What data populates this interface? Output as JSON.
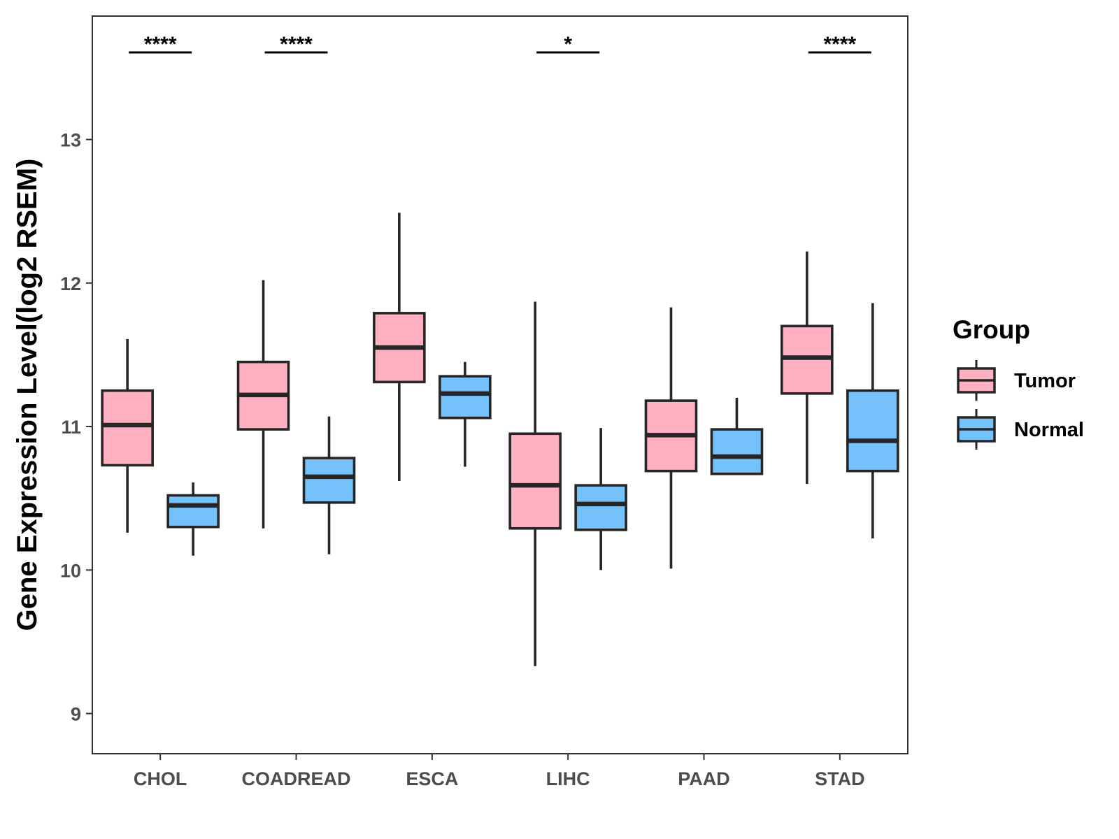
{
  "chart_data": {
    "type": "boxplot",
    "title": "",
    "xlabel": "",
    "ylabel": "Gene Expression Level(log2 RSEM)",
    "ylim": [
      8.72,
      13.86
    ],
    "yticks": [
      9,
      10,
      11,
      12,
      13
    ],
    "categories": [
      "CHOL",
      "COADREAD",
      "ESCA",
      "LIHC",
      "PAAD",
      "STAD"
    ],
    "grid": false,
    "legend": {
      "title": "Group",
      "position": "right",
      "entries": [
        "Tumor",
        "Normal"
      ]
    },
    "colors": {
      "Tumor": "#FFB1C2",
      "Normal": "#75C2FA",
      "stroke": "#262626"
    },
    "series": [
      {
        "name": "Tumor",
        "boxes": [
          {
            "category": "CHOL",
            "whisker_low": 10.26,
            "q1": 10.73,
            "median": 11.01,
            "q3": 11.25,
            "whisker_high": 11.61
          },
          {
            "category": "COADREAD",
            "whisker_low": 10.29,
            "q1": 10.98,
            "median": 11.22,
            "q3": 11.45,
            "whisker_high": 12.02
          },
          {
            "category": "ESCA",
            "whisker_low": 10.62,
            "q1": 11.31,
            "median": 11.55,
            "q3": 11.79,
            "whisker_high": 12.49
          },
          {
            "category": "LIHC",
            "whisker_low": 9.33,
            "q1": 10.29,
            "median": 10.59,
            "q3": 10.95,
            "whisker_high": 11.87
          },
          {
            "category": "PAAD",
            "whisker_low": 10.01,
            "q1": 10.69,
            "median": 10.94,
            "q3": 11.18,
            "whisker_high": 11.83
          },
          {
            "category": "STAD",
            "whisker_low": 10.6,
            "q1": 11.23,
            "median": 11.48,
            "q3": 11.7,
            "whisker_high": 12.22
          }
        ]
      },
      {
        "name": "Normal",
        "boxes": [
          {
            "category": "CHOL",
            "whisker_low": 10.1,
            "q1": 10.3,
            "median": 10.45,
            "q3": 10.52,
            "whisker_high": 10.61
          },
          {
            "category": "COADREAD",
            "whisker_low": 10.11,
            "q1": 10.47,
            "median": 10.65,
            "q3": 10.78,
            "whisker_high": 11.07
          },
          {
            "category": "ESCA",
            "whisker_low": 10.72,
            "q1": 11.06,
            "median": 11.23,
            "q3": 11.35,
            "whisker_high": 11.45
          },
          {
            "category": "LIHC",
            "whisker_low": 10.0,
            "q1": 10.28,
            "median": 10.46,
            "q3": 10.59,
            "whisker_high": 10.99
          },
          {
            "category": "PAAD",
            "whisker_low": 10.67,
            "q1": 10.67,
            "median": 10.79,
            "q3": 10.98,
            "whisker_high": 11.2
          },
          {
            "category": "STAD",
            "whisker_low": 10.22,
            "q1": 10.69,
            "median": 10.9,
            "q3": 11.25,
            "whisker_high": 11.86
          }
        ]
      }
    ],
    "significance": [
      {
        "category": "CHOL",
        "label": "****"
      },
      {
        "category": "COADREAD",
        "label": "****"
      },
      {
        "category": "LIHC",
        "label": "*"
      },
      {
        "category": "STAD",
        "label": "****"
      }
    ]
  }
}
